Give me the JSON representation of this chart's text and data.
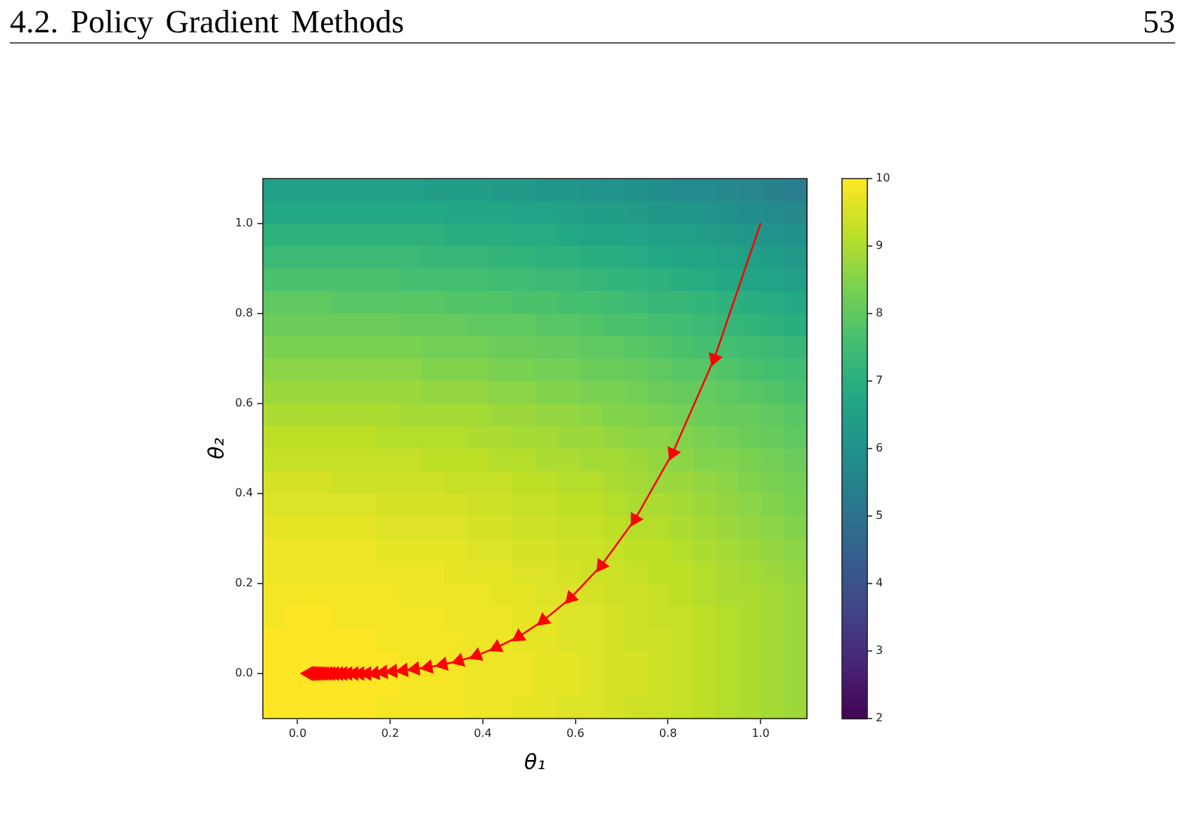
{
  "chart_data": {
    "type": "heatmap",
    "annotations": [
      "4.2. Policy Gradient Methods",
      "53"
    ],
    "xlabel": "θ₁",
    "ylabel": "θ₂",
    "xlim": [
      -0.075,
      1.1
    ],
    "xticks": [
      {
        "value": 0,
        "label": "0.0"
      },
      0.2,
      0.4,
      0.6,
      0.8,
      {
        "value": 1,
        "label": "1.0"
      }
    ],
    "ylim": [
      -0.1,
      1.1
    ],
    "yticks": [
      {
        "value": 0,
        "label": "0.0"
      },
      0.2,
      0.4,
      0.6,
      0.8,
      {
        "value": 1,
        "label": "1.0"
      }
    ],
    "clim": [
      2,
      10
    ],
    "cticks": [
      2,
      3,
      4,
      5,
      6,
      7,
      8,
      9,
      10
    ],
    "cells": [
      [
        6.5,
        6.5,
        6.5,
        6.5,
        6.5,
        6.5,
        6.5,
        6.4,
        6.4,
        6.4,
        6.3,
        6.3,
        6.2,
        6.2,
        6.1,
        6.1,
        6.0,
        5.9,
        5.8,
        5.8,
        5.7,
        5.6,
        5.5,
        5.4
      ],
      [
        6.8,
        6.8,
        6.8,
        6.8,
        6.8,
        6.8,
        6.8,
        6.8,
        6.7,
        6.7,
        6.7,
        6.6,
        6.6,
        6.5,
        6.4,
        6.4,
        6.3,
        6.2,
        6.2,
        6.1,
        6.0,
        5.9,
        5.8,
        5.7
      ],
      [
        7.1,
        7.1,
        7.1,
        7.1,
        7.1,
        7.1,
        7.1,
        7.1,
        7.0,
        7.0,
        7.0,
        6.9,
        6.9,
        6.8,
        6.7,
        6.7,
        6.6,
        6.5,
        6.5,
        6.4,
        6.3,
        6.2,
        6.1,
        6.0
      ],
      [
        7.4,
        7.4,
        7.4,
        7.4,
        7.4,
        7.4,
        7.4,
        7.3,
        7.3,
        7.3,
        7.2,
        7.2,
        7.1,
        7.1,
        7.0,
        7.0,
        6.9,
        6.8,
        6.7,
        6.7,
        6.6,
        6.5,
        6.4,
        6.3
      ],
      [
        7.7,
        7.7,
        7.7,
        7.7,
        7.7,
        7.7,
        7.6,
        7.6,
        7.6,
        7.6,
        7.5,
        7.5,
        7.4,
        7.4,
        7.3,
        7.2,
        7.2,
        7.1,
        7.0,
        6.9,
        6.8,
        6.7,
        6.6,
        6.5
      ],
      [
        8.0,
        8.0,
        8.0,
        7.9,
        7.9,
        7.9,
        7.9,
        7.9,
        7.8,
        7.8,
        7.8,
        7.7,
        7.7,
        7.6,
        7.6,
        7.5,
        7.4,
        7.3,
        7.3,
        7.2,
        7.1,
        7.0,
        6.9,
        6.8
      ],
      [
        8.2,
        8.2,
        8.2,
        8.2,
        8.2,
        8.2,
        8.1,
        8.1,
        8.1,
        8.0,
        8.0,
        8.0,
        7.9,
        7.9,
        7.8,
        7.7,
        7.7,
        7.6,
        7.5,
        7.4,
        7.3,
        7.2,
        7.1,
        7.0
      ],
      [
        8.4,
        8.4,
        8.4,
        8.4,
        8.4,
        8.4,
        8.4,
        8.3,
        8.3,
        8.3,
        8.2,
        8.2,
        8.1,
        8.1,
        8.0,
        8.0,
        7.9,
        7.8,
        7.7,
        7.6,
        7.6,
        7.5,
        7.4,
        7.3
      ],
      [
        8.6,
        8.6,
        8.6,
        8.6,
        8.6,
        8.6,
        8.6,
        8.5,
        8.5,
        8.5,
        8.4,
        8.4,
        8.3,
        8.3,
        8.2,
        8.2,
        8.1,
        8.0,
        7.9,
        7.9,
        7.8,
        7.7,
        7.6,
        7.5
      ],
      [
        8.8,
        8.8,
        8.8,
        8.8,
        8.8,
        8.8,
        8.8,
        8.7,
        8.7,
        8.7,
        8.6,
        8.6,
        8.5,
        8.5,
        8.4,
        8.4,
        8.3,
        8.2,
        8.1,
        8.1,
        8.0,
        7.9,
        7.8,
        7.7
      ],
      [
        9.0,
        9.0,
        9.0,
        9.0,
        9.0,
        9.0,
        8.9,
        8.9,
        8.9,
        8.9,
        8.8,
        8.8,
        8.7,
        8.7,
        8.6,
        8.5,
        8.5,
        8.4,
        8.3,
        8.2,
        8.1,
        8.1,
        8.0,
        7.9
      ],
      [
        9.2,
        9.2,
        9.2,
        9.2,
        9.2,
        9.1,
        9.1,
        9.1,
        9.1,
        9.0,
        9.0,
        8.9,
        8.9,
        8.8,
        8.8,
        8.7,
        8.6,
        8.6,
        8.5,
        8.4,
        8.3,
        8.2,
        8.1,
        8.0
      ],
      [
        9.3,
        9.3,
        9.3,
        9.3,
        9.3,
        9.3,
        9.3,
        9.2,
        9.2,
        9.2,
        9.1,
        9.1,
        9.0,
        9.0,
        8.9,
        8.9,
        8.8,
        8.7,
        8.6,
        8.5,
        8.5,
        8.4,
        8.3,
        8.2
      ],
      [
        9.5,
        9.5,
        9.5,
        9.4,
        9.4,
        9.4,
        9.4,
        9.4,
        9.3,
        9.3,
        9.3,
        9.2,
        9.2,
        9.1,
        9.1,
        9.0,
        8.9,
        8.8,
        8.8,
        8.7,
        8.6,
        8.5,
        8.4,
        8.3
      ],
      [
        9.6,
        9.6,
        9.6,
        9.6,
        9.6,
        9.5,
        9.5,
        9.5,
        9.5,
        9.4,
        9.4,
        9.3,
        9.3,
        9.2,
        9.2,
        9.1,
        9.0,
        9.0,
        8.9,
        8.8,
        8.7,
        8.6,
        8.5,
        8.4
      ],
      [
        9.7,
        9.7,
        9.7,
        9.7,
        9.7,
        9.6,
        9.6,
        9.6,
        9.6,
        9.5,
        9.5,
        9.4,
        9.4,
        9.3,
        9.3,
        9.2,
        9.1,
        9.1,
        9.0,
        8.9,
        8.8,
        8.7,
        8.6,
        8.5
      ],
      [
        9.8,
        9.8,
        9.8,
        9.8,
        9.8,
        9.7,
        9.7,
        9.7,
        9.7,
        9.6,
        9.6,
        9.5,
        9.5,
        9.4,
        9.4,
        9.3,
        9.2,
        9.2,
        9.1,
        9.0,
        8.9,
        8.8,
        8.7,
        8.6
      ],
      [
        9.8,
        9.8,
        9.8,
        9.8,
        9.8,
        9.8,
        9.8,
        9.8,
        9.7,
        9.7,
        9.7,
        9.6,
        9.6,
        9.5,
        9.4,
        9.4,
        9.3,
        9.2,
        9.2,
        9.1,
        9.0,
        8.9,
        8.8,
        8.7
      ],
      [
        9.9,
        9.9,
        9.9,
        9.9,
        9.9,
        9.9,
        9.8,
        9.8,
        9.8,
        9.8,
        9.7,
        9.7,
        9.6,
        9.6,
        9.5,
        9.4,
        9.4,
        9.3,
        9.2,
        9.1,
        9.0,
        9.0,
        8.9,
        8.8
      ],
      [
        9.9,
        10,
        10,
        9.9,
        9.9,
        9.9,
        9.9,
        9.9,
        9.8,
        9.8,
        9.8,
        9.7,
        9.7,
        9.6,
        9.6,
        9.5,
        9.4,
        9.3,
        9.3,
        9.2,
        9.1,
        9.0,
        8.9,
        8.8
      ],
      [
        10,
        10,
        10,
        10,
        10,
        9.9,
        9.9,
        9.9,
        9.9,
        9.8,
        9.8,
        9.7,
        9.7,
        9.6,
        9.6,
        9.5,
        9.4,
        9.4,
        9.3,
        9.2,
        9.1,
        9.0,
        8.9,
        8.8
      ],
      [
        10,
        10,
        10,
        10,
        10,
        10,
        9.9,
        9.9,
        9.9,
        9.8,
        9.8,
        9.8,
        9.7,
        9.7,
        9.6,
        9.5,
        9.5,
        9.4,
        9.3,
        9.2,
        9.1,
        9.0,
        8.9,
        8.8
      ],
      [
        10,
        10,
        10,
        10,
        10,
        10,
        9.9,
        9.9,
        9.9,
        9.8,
        9.8,
        9.8,
        9.7,
        9.7,
        9.6,
        9.5,
        9.5,
        9.4,
        9.3,
        9.2,
        9.1,
        9.0,
        8.9,
        8.8
      ],
      [
        10,
        10,
        10,
        10,
        10,
        9.9,
        9.9,
        9.9,
        9.9,
        9.8,
        9.8,
        9.7,
        9.7,
        9.6,
        9.6,
        9.5,
        9.4,
        9.4,
        9.3,
        9.2,
        9.1,
        9.0,
        8.9,
        8.8
      ]
    ],
    "marker": "triangle",
    "series": [
      {
        "type": "line",
        "color": "#ff0000",
        "x": [
          1.0,
          0.9,
          0.81,
          0.729,
          0.656,
          0.59,
          0.531,
          0.478,
          0.43,
          0.387,
          0.349,
          0.314,
          0.282,
          0.254,
          0.229,
          0.206,
          0.185,
          0.167,
          0.15,
          0.135,
          0.122,
          0.109,
          0.098,
          0.089,
          0.08,
          0.072,
          0.065,
          0.058,
          0.052,
          0.047,
          0.042,
          0.038,
          0.034,
          0.031,
          0.028,
          0.025,
          0.023
        ],
        "values": [
          1.0,
          0.7,
          0.49,
          0.343,
          0.24,
          0.168,
          0.118,
          0.082,
          0.058,
          0.04,
          0.028,
          0.02,
          0.014,
          0.01,
          0.007,
          0.005,
          0.003,
          0,
          0,
          0,
          0,
          0,
          0,
          0,
          0,
          0,
          0,
          0,
          0,
          0,
          0,
          0,
          0,
          0,
          0,
          0,
          0
        ]
      }
    ]
  }
}
